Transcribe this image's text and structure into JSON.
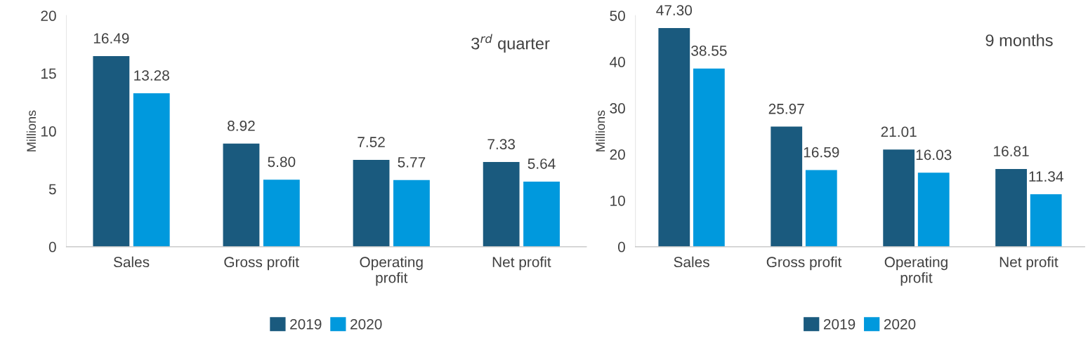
{
  "chart_data": [
    {
      "type": "bar",
      "ylabel": "Millions",
      "annotations": [
        "3$^{rd}$ quarter"
      ],
      "categories": [
        "Sales",
        "Gross profit",
        "Operating\nprofit",
        "Net profit"
      ],
      "series": [
        {
          "name": "2019",
          "color": "#1a5a7e",
          "values": [
            16.49,
            8.92,
            7.52,
            7.33
          ],
          "value_labels": [
            "16.49",
            "8.92",
            "7.52",
            "7.33"
          ]
        },
        {
          "name": "2020",
          "color": "#0099dd",
          "values": [
            13.28,
            5.8,
            5.77,
            5.64
          ],
          "value_labels": [
            "13.28",
            "5.80",
            "5.77",
            "5.64"
          ]
        }
      ],
      "ylim": [
        0,
        20
      ],
      "yticks": [
        0,
        5,
        10,
        15,
        20
      ],
      "legend": "bottom"
    },
    {
      "type": "bar",
      "ylabel": "Millions",
      "annotations": [
        "9 months"
      ],
      "categories": [
        "Sales",
        "Gross profit",
        "Operating\nprofit",
        "Net profit"
      ],
      "series": [
        {
          "name": "2019",
          "color": "#1a5a7e",
          "values": [
            47.3,
            25.97,
            21.01,
            16.81
          ],
          "value_labels": [
            "47.30",
            "25.97",
            "21.01",
            "16.81"
          ]
        },
        {
          "name": "2020",
          "color": "#0099dd",
          "values": [
            38.55,
            16.59,
            16.03,
            11.34
          ],
          "value_labels": [
            "38.55",
            "16.59",
            "16.03",
            "11.34"
          ]
        }
      ],
      "ylim": [
        0,
        50
      ],
      "yticks": [
        0,
        10,
        20,
        30,
        40,
        50
      ],
      "legend": "bottom"
    }
  ]
}
